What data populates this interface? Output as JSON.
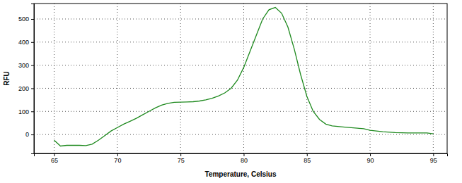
{
  "chart_data": {
    "type": "line",
    "x_label": "Temperature, Celsius",
    "y_label": "RFU",
    "x": [
      65,
      65.5,
      66,
      67,
      67.5,
      68,
      68.5,
      69,
      69.5,
      70,
      70.5,
      71,
      71.5,
      72,
      72.5,
      73,
      73.5,
      74,
      74.5,
      75,
      75.5,
      76,
      76.5,
      77,
      77.5,
      78,
      78.5,
      79,
      79.5,
      80,
      80.5,
      81,
      81.5,
      82,
      82.5,
      83,
      83.5,
      84,
      84.5,
      85,
      85.5,
      86,
      86.5,
      87,
      88,
      89,
      89.5,
      90,
      91,
      92,
      93,
      94,
      94.5,
      95
    ],
    "series": [
      {
        "color": "#1f8a1f",
        "values": [
          -25,
          -50,
          -47,
          -47,
          -48,
          -42,
          -25,
          -5,
          15,
          30,
          45,
          57,
          70,
          85,
          100,
          115,
          127,
          135,
          139,
          140,
          141,
          142,
          145,
          150,
          157,
          167,
          180,
          200,
          235,
          290,
          360,
          430,
          500,
          540,
          550,
          525,
          465,
          370,
          260,
          165,
          100,
          65,
          45,
          37,
          32,
          27,
          25,
          18,
          12,
          8,
          7,
          7,
          7,
          3
        ]
      }
    ],
    "xlim": [
      63.4,
      96.1
    ],
    "xticks": [
      65,
      70,
      75,
      80,
      85,
      90,
      95
    ],
    "ylim": [
      -82,
      567
    ],
    "yticks": [
      0,
      100,
      200,
      300,
      400,
      500
    ],
    "grid": true
  }
}
